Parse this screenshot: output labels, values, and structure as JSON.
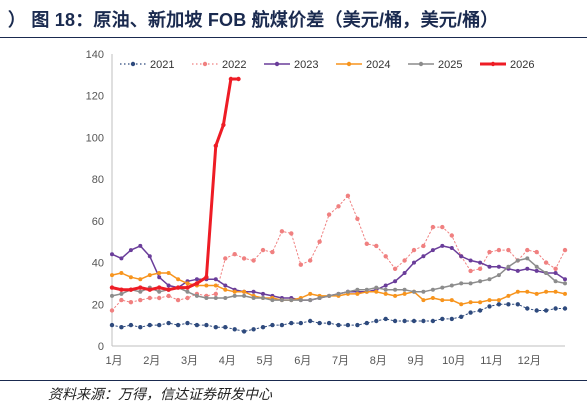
{
  "figure": {
    "title": "） 图 18：原油、新加坡 FOB 航煤价差（美元/桶，美元/桶）",
    "source": "资料来源：万得，信达证券研发中心"
  },
  "chart_data": {
    "type": "line",
    "title": "",
    "xlabel": "",
    "ylabel": "",
    "ylim": [
      0,
      140
    ],
    "yticks": [
      0,
      20,
      40,
      60,
      80,
      100,
      120,
      140
    ],
    "xlim": [
      0,
      12
    ],
    "xtick_labels": [
      "1月",
      "2月",
      "3月",
      "4月",
      "5月",
      "6月",
      "7月",
      "8月",
      "9月",
      "10月",
      "11月",
      "12月"
    ],
    "grid": false,
    "legend_position": "top",
    "series": [
      {
        "name": "2021",
        "color": "#2e4a7d",
        "style": "dotted-markers",
        "x": [
          0.0,
          0.25,
          0.5,
          0.75,
          1.0,
          1.25,
          1.5,
          1.75,
          2.0,
          2.25,
          2.5,
          2.75,
          3.0,
          3.25,
          3.5,
          3.75,
          4.0,
          4.25,
          4.5,
          4.75,
          5.0,
          5.25,
          5.5,
          5.75,
          6.0,
          6.25,
          6.5,
          6.75,
          7.0,
          7.25,
          7.5,
          7.75,
          8.0,
          8.25,
          8.5,
          8.75,
          9.0,
          9.25,
          9.5,
          9.75,
          10.0,
          10.25,
          10.5,
          10.75,
          11.0,
          11.25,
          11.5,
          11.75,
          12.0
        ],
        "y": [
          10,
          9,
          10,
          9,
          10,
          10,
          11,
          10,
          11,
          10,
          10,
          9,
          9,
          8,
          7,
          8,
          9,
          10,
          10,
          11,
          11,
          12,
          11,
          11,
          10,
          10,
          10,
          11,
          12,
          13,
          12,
          12,
          12,
          12,
          12,
          13,
          13,
          14,
          16,
          17,
          19,
          20,
          20,
          20,
          18,
          17,
          17,
          18,
          18
        ]
      },
      {
        "name": "2022",
        "color": "#f08080",
        "style": "dotted-markers",
        "x": [
          0.0,
          0.25,
          0.5,
          0.75,
          1.0,
          1.25,
          1.5,
          1.75,
          2.0,
          2.25,
          2.5,
          2.75,
          3.0,
          3.25,
          3.5,
          3.75,
          4.0,
          4.25,
          4.5,
          4.75,
          5.0,
          5.25,
          5.5,
          5.75,
          6.0,
          6.25,
          6.5,
          6.75,
          7.0,
          7.25,
          7.5,
          7.75,
          8.0,
          8.25,
          8.5,
          8.75,
          9.0,
          9.25,
          9.5,
          9.75,
          10.0,
          10.25,
          10.5,
          10.75,
          11.0,
          11.25,
          11.5,
          11.75,
          12.0
        ],
        "y": [
          17,
          22,
          21,
          22,
          23,
          23,
          24,
          22,
          23,
          25,
          24,
          25,
          42,
          44,
          42,
          41,
          46,
          45,
          55,
          54,
          39,
          41,
          50,
          63,
          67,
          72,
          61,
          49,
          48,
          43,
          37,
          41,
          46,
          48,
          57,
          57,
          53,
          43,
          36,
          37,
          45,
          46,
          46,
          41,
          46,
          45,
          40,
          37,
          46
        ]
      },
      {
        "name": "2023",
        "color": "#6a3d9a",
        "style": "solid-markers",
        "x": [
          0.0,
          0.25,
          0.5,
          0.75,
          1.0,
          1.25,
          1.5,
          1.75,
          2.0,
          2.25,
          2.5,
          2.75,
          3.0,
          3.25,
          3.5,
          3.75,
          4.0,
          4.25,
          4.5,
          4.75,
          5.0,
          5.25,
          5.5,
          5.75,
          6.0,
          6.25,
          6.5,
          6.75,
          7.0,
          7.25,
          7.5,
          7.75,
          8.0,
          8.25,
          8.5,
          8.75,
          9.0,
          9.25,
          9.5,
          9.75,
          10.0,
          10.25,
          10.5,
          10.75,
          11.0,
          11.25,
          11.5,
          11.75,
          12.0
        ],
        "y": [
          44,
          42,
          46,
          48,
          43,
          33,
          29,
          28,
          31,
          32,
          32,
          32,
          29,
          27,
          26,
          26,
          25,
          24,
          23,
          23,
          22,
          22,
          23,
          24,
          25,
          26,
          26,
          26,
          27,
          29,
          31,
          35,
          40,
          43,
          46,
          48,
          47,
          43,
          41,
          40,
          38,
          38,
          37,
          36,
          37,
          36,
          35,
          35,
          32
        ]
      },
      {
        "name": "2024",
        "color": "#f7941d",
        "style": "solid-markers",
        "x": [
          0.0,
          0.25,
          0.5,
          0.75,
          1.0,
          1.25,
          1.5,
          1.75,
          2.0,
          2.25,
          2.5,
          2.75,
          3.0,
          3.25,
          3.5,
          3.75,
          4.0,
          4.25,
          4.5,
          4.75,
          5.0,
          5.25,
          5.5,
          5.75,
          6.0,
          6.25,
          6.5,
          6.75,
          7.0,
          7.25,
          7.5,
          7.75,
          8.0,
          8.25,
          8.5,
          8.75,
          9.0,
          9.25,
          9.5,
          9.75,
          10.0,
          10.25,
          10.5,
          10.75,
          11.0,
          11.25,
          11.5,
          11.75,
          12.0
        ],
        "y": [
          34,
          35,
          33,
          32,
          34,
          35,
          35,
          32,
          30,
          29,
          29,
          29,
          27,
          26,
          26,
          24,
          23,
          23,
          22,
          22,
          23,
          25,
          24,
          24,
          24,
          25,
          25,
          26,
          26,
          25,
          24,
          25,
          26,
          22,
          23,
          22,
          22,
          20,
          21,
          21,
          22,
          22,
          24,
          26,
          26,
          25,
          26,
          26,
          25
        ]
      },
      {
        "name": "2025",
        "color": "#8c8c8c",
        "style": "solid-markers",
        "x": [
          0.0,
          0.25,
          0.5,
          0.75,
          1.0,
          1.25,
          1.5,
          1.75,
          2.0,
          2.25,
          2.5,
          2.75,
          3.0,
          3.25,
          3.5,
          3.75,
          4.0,
          4.25,
          4.5,
          4.75,
          5.0,
          5.25,
          5.5,
          5.75,
          6.0,
          6.25,
          6.5,
          6.75,
          7.0,
          7.25,
          7.5,
          7.75,
          8.0,
          8.25,
          8.5,
          8.75,
          9.0,
          9.25,
          9.5,
          9.75,
          10.0,
          10.25,
          10.5,
          10.75,
          11.0,
          11.25,
          11.5,
          11.75,
          12.0
        ],
        "y": [
          24,
          25,
          27,
          26,
          28,
          26,
          27,
          28,
          26,
          24,
          23,
          23,
          23,
          24,
          24,
          23,
          23,
          22,
          22,
          22,
          22,
          22,
          23,
          24,
          25,
          26,
          27,
          27,
          28,
          27,
          27,
          27,
          26,
          26,
          27,
          28,
          29,
          30,
          30,
          31,
          32,
          34,
          38,
          41,
          42,
          38,
          35,
          31,
          30
        ]
      },
      {
        "name": "2026",
        "color": "#ee1c25",
        "style": "thick-markers",
        "x": [
          0.0,
          0.25,
          0.5,
          0.75,
          1.0,
          1.25,
          1.5,
          1.75,
          2.0,
          2.25,
          2.5,
          2.75,
          2.95,
          3.15,
          3.35
        ],
        "y": [
          28,
          27,
          27,
          28,
          27,
          28,
          27,
          28,
          28,
          30,
          33,
          96,
          106,
          128,
          128
        ]
      }
    ]
  }
}
